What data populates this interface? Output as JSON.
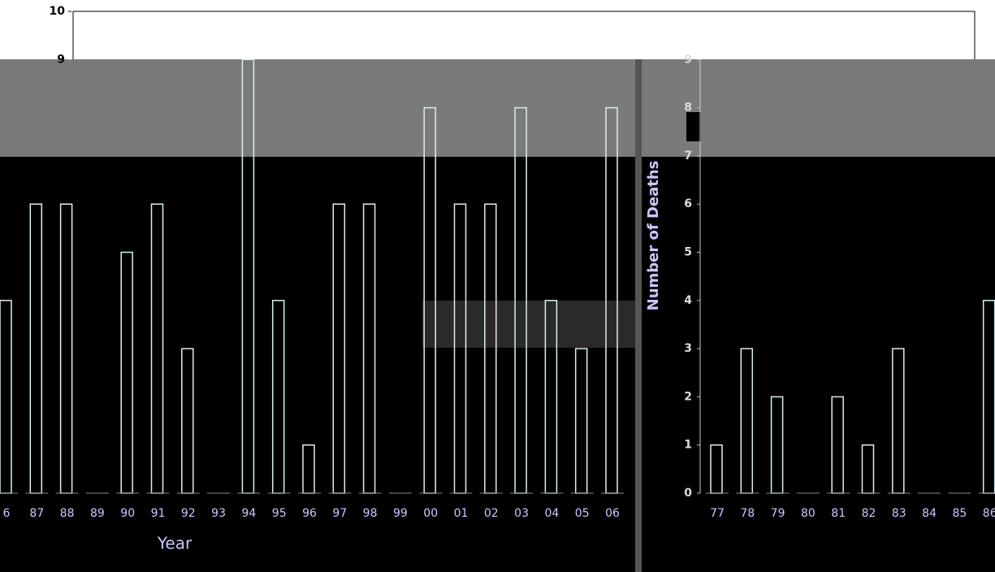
{
  "chart_data": [
    {
      "type": "bar",
      "x_label": "Year",
      "categories": [
        "6",
        "87",
        "88",
        "89",
        "90",
        "91",
        "92",
        "93",
        "94",
        "95",
        "96",
        "97",
        "98",
        "99",
        "00",
        "01",
        "02",
        "03",
        "04",
        "05",
        "06"
      ],
      "values": [
        4,
        6,
        6,
        0,
        5,
        6,
        3,
        0,
        9,
        4,
        1,
        6,
        6,
        0,
        8,
        6,
        6,
        8,
        4,
        3,
        8
      ],
      "color": "#d8f0f0",
      "ylim": [
        0,
        10
      ],
      "yticks": [
        9,
        10
      ]
    },
    {
      "type": "bar",
      "y_label": "Number of Deaths",
      "categories": [
        "77",
        "78",
        "79",
        "80",
        "81",
        "82",
        "83",
        "84",
        "85",
        "86"
      ],
      "values": [
        1,
        3,
        2,
        0,
        2,
        1,
        3,
        0,
        0,
        4
      ],
      "color": "#d8f0f0",
      "ylim": [
        0,
        10
      ],
      "yticks": [
        0,
        1,
        2,
        3,
        4,
        5,
        6,
        7,
        8,
        9
      ]
    }
  ]
}
